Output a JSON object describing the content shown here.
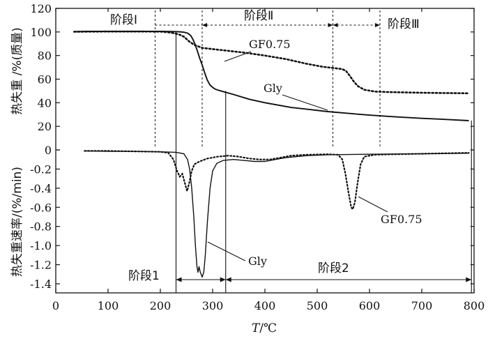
{
  "chart_data": {
    "type": "line",
    "xlabel_italic": "T",
    "xlabel_rest": "/℃",
    "xlim": [
      0,
      800
    ],
    "x_ticks": [
      0,
      100,
      200,
      300,
      400,
      500,
      600,
      700,
      800
    ],
    "panels": [
      {
        "id": "tg",
        "ylabel": "热失重 /%(质量)",
        "ylim": [
          0,
          120
        ],
        "y_ticks": [
          0,
          20,
          40,
          60,
          80,
          100,
          120
        ],
        "series": [
          {
            "name": "Gly",
            "style": "solid",
            "points": [
              [
                35,
                100.2
              ],
              [
                60,
                100.5
              ],
              [
                100,
                100.5
              ],
              [
                150,
                100.5
              ],
              [
                200,
                100.5
              ],
              [
                220,
                100.4
              ],
              [
                235,
                100.2
              ],
              [
                245,
                99.8
              ],
              [
                252,
                99
              ],
              [
                258,
                97
              ],
              [
                262,
                94
              ],
              [
                266,
                90
              ],
              [
                270,
                85
              ],
              [
                275,
                78
              ],
              [
                280,
                72
              ],
              [
                285,
                65
              ],
              [
                290,
                59
              ],
              [
                295,
                55
              ],
              [
                300,
                53
              ],
              [
                305,
                51.5
              ],
              [
                312,
                50.5
              ],
              [
                320,
                49.5
              ],
              [
                340,
                47
              ],
              [
                370,
                43
              ],
              [
                400,
                40
              ],
              [
                450,
                36
              ],
              [
                480,
                34.5
              ],
              [
                520,
                32.5
              ],
              [
                560,
                31
              ],
              [
                600,
                29.5
              ],
              [
                650,
                28
              ],
              [
                700,
                26.8
              ],
              [
                750,
                25.8
              ],
              [
                790,
                24.8
              ]
            ]
          },
          {
            "name": "GF0.75",
            "style": "dotted",
            "points": [
              [
                35,
                100.2
              ],
              [
                100,
                100.4
              ],
              [
                150,
                100.4
              ],
              [
                200,
                100.3
              ],
              [
                220,
                99.5
              ],
              [
                235,
                98
              ],
              [
                245,
                96
              ],
              [
                255,
                92
              ],
              [
                265,
                89
              ],
              [
                280,
                86.5
              ],
              [
                300,
                85.5
              ],
              [
                330,
                84
              ],
              [
                360,
                82.5
              ],
              [
                400,
                80
              ],
              [
                440,
                77
              ],
              [
                480,
                73
              ],
              [
                510,
                70.5
              ],
              [
                530,
                69.5
              ],
              [
                548,
                68.5
              ],
              [
                555,
                67
              ],
              [
                562,
                63
              ],
              [
                570,
                58
              ],
              [
                578,
                54
              ],
              [
                590,
                51
              ],
              [
                610,
                49.5
              ],
              [
                640,
                49
              ],
              [
                700,
                48.5
              ],
              [
                790,
                48
              ]
            ]
          }
        ]
      },
      {
        "id": "dtg",
        "ylabel": "热失重速率/(%/min)",
        "ylim": [
          -1.4,
          0
        ],
        "y_ticks": [
          0,
          -0.2,
          -0.4,
          -0.6,
          -0.8,
          -1.0,
          -1.2,
          -1.4
        ],
        "y_tick_labels": [
          "0",
          "-0.2",
          "-0.4",
          "-0.6",
          "-0.8",
          "-1.0",
          "-1.2",
          "-1.4"
        ],
        "series": [
          {
            "name": "Gly",
            "style": "solid-thin",
            "points": [
              [
                55,
                -0.01
              ],
              [
                100,
                -0.015
              ],
              [
                150,
                -0.015
              ],
              [
                200,
                -0.02
              ],
              [
                230,
                -0.025
              ],
              [
                245,
                -0.04
              ],
              [
                252,
                -0.1
              ],
              [
                256,
                -0.2
              ],
              [
                260,
                -0.4
              ],
              [
                264,
                -0.7
              ],
              [
                267,
                -1.0
              ],
              [
                270,
                -1.22
              ],
              [
                272,
                -1.28
              ],
              [
                274,
                -1.22
              ],
              [
                276,
                -1.27
              ],
              [
                278,
                -1.3
              ],
              [
                280,
                -1.33
              ],
              [
                283,
                -1.28
              ],
              [
                286,
                -1.1
              ],
              [
                290,
                -0.75
              ],
              [
                295,
                -0.4
              ],
              [
                300,
                -0.22
              ],
              [
                308,
                -0.14
              ],
              [
                320,
                -0.11
              ],
              [
                340,
                -0.1
              ],
              [
                360,
                -0.11
              ],
              [
                380,
                -0.12
              ],
              [
                400,
                -0.12
              ],
              [
                420,
                -0.1
              ],
              [
                440,
                -0.08
              ],
              [
                480,
                -0.06
              ],
              [
                520,
                -0.05
              ],
              [
                600,
                -0.045
              ],
              [
                700,
                -0.04
              ],
              [
                790,
                -0.035
              ]
            ]
          },
          {
            "name": "GF0.75",
            "style": "dotted-thin",
            "points": [
              [
                55,
                -0.01
              ],
              [
                100,
                -0.01
              ],
              [
                150,
                -0.015
              ],
              [
                200,
                -0.02
              ],
              [
                215,
                -0.03
              ],
              [
                225,
                -0.1
              ],
              [
                232,
                -0.22
              ],
              [
                237,
                -0.28
              ],
              [
                242,
                -0.25
              ],
              [
                247,
                -0.35
              ],
              [
                251,
                -0.43
              ],
              [
                255,
                -0.35
              ],
              [
                260,
                -0.22
              ],
              [
                265,
                -0.15
              ],
              [
                275,
                -0.12
              ],
              [
                290,
                -0.09
              ],
              [
                310,
                -0.07
              ],
              [
                330,
                -0.06
              ],
              [
                350,
                -0.07
              ],
              [
                370,
                -0.09
              ],
              [
                390,
                -0.1
              ],
              [
                410,
                -0.1
              ],
              [
                430,
                -0.08
              ],
              [
                450,
                -0.06
              ],
              [
                480,
                -0.05
              ],
              [
                520,
                -0.045
              ],
              [
                540,
                -0.05
              ],
              [
                548,
                -0.1
              ],
              [
                554,
                -0.25
              ],
              [
                560,
                -0.45
              ],
              [
                565,
                -0.6
              ],
              [
                568,
                -0.62
              ],
              [
                572,
                -0.55
              ],
              [
                577,
                -0.35
              ],
              [
                583,
                -0.15
              ],
              [
                590,
                -0.07
              ],
              [
                610,
                -0.05
              ],
              [
                650,
                -0.045
              ],
              [
                700,
                -0.04
              ],
              [
                790,
                -0.03
              ]
            ]
          }
        ]
      }
    ],
    "annotations": {
      "stage1_label": "阶段Ⅰ",
      "stage2_label": "阶段Ⅱ",
      "stage3_label": "阶段Ⅲ",
      "stage_a_label": "阶段1",
      "stage_b_label": "阶段2",
      "tg_gf_label": "GF0.75",
      "tg_gly_label": "Gly",
      "dtg_gly_label": "Gly",
      "dtg_gf_label": "GF0.75"
    },
    "boundaries": {
      "tg_stage_dashed": [
        190,
        280,
        530,
        620
      ],
      "solid_stage": [
        230,
        325,
        795
      ]
    }
  }
}
